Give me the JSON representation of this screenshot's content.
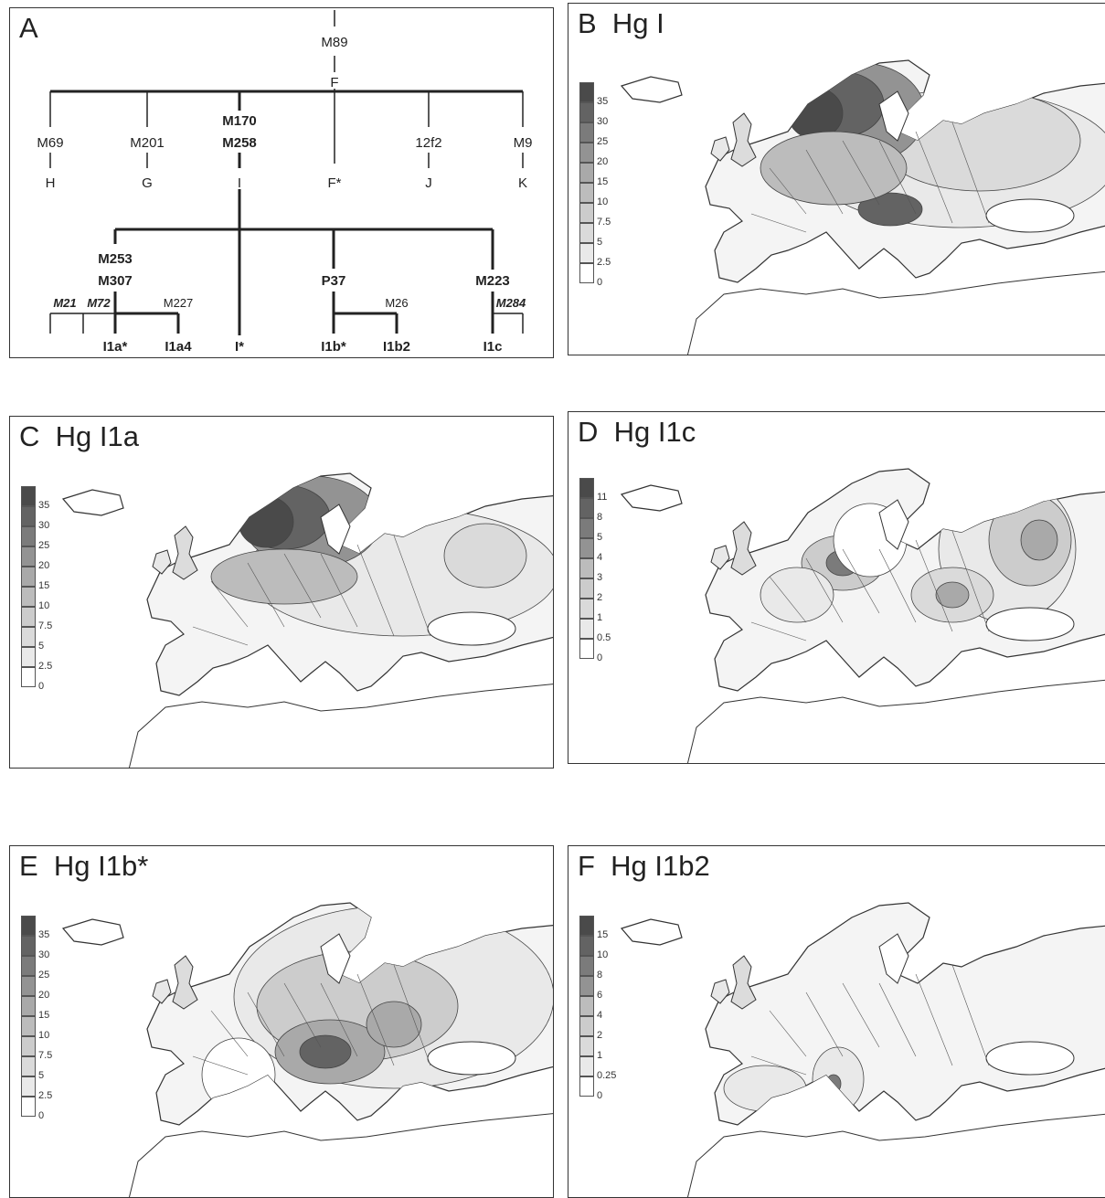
{
  "panels": {
    "A": {
      "label": "A"
    },
    "B": {
      "label": "B",
      "title": "Hg I"
    },
    "C": {
      "label": "C",
      "title": "Hg I1a"
    },
    "D": {
      "label": "D",
      "title": "Hg I1c"
    },
    "E": {
      "label": "E",
      "title": "Hg I1b*"
    },
    "F": {
      "label": "F",
      "title": "Hg I1b2"
    }
  },
  "tree": {
    "root_marker": "M89",
    "root_hg": "F",
    "branches": [
      {
        "marker": "M69",
        "hg": "H"
      },
      {
        "marker": "M201",
        "hg": "G"
      },
      {
        "marker1": "M170",
        "marker2": "M258",
        "hg": "I"
      },
      {
        "hg": "F*"
      },
      {
        "marker": "12f2",
        "hg": "J"
      },
      {
        "marker": "M9",
        "hg": "K"
      }
    ],
    "i_sub": {
      "i1a_marker1": "M253",
      "i1a_marker2": "M307",
      "i1a_sub_markers": [
        "M21",
        "M72",
        "M227"
      ],
      "i1b_marker": "P37",
      "i1b_sub_marker": "M26",
      "i1c_marker": "M223",
      "i1c_sub_marker": "M284",
      "tips": [
        "I1a*",
        "I1a4",
        "I*",
        "I1b*",
        "I1b2",
        "I1c"
      ]
    }
  },
  "legends": {
    "B": [
      "35",
      "30",
      "25",
      "20",
      "15",
      "10",
      "7.5",
      "5",
      "2.5",
      "0"
    ],
    "C": [
      "35",
      "30",
      "25",
      "20",
      "15",
      "10",
      "7.5",
      "5",
      "2.5",
      "0"
    ],
    "D": [
      "11",
      "8",
      "5",
      "4",
      "3",
      "2",
      "1",
      "0.5",
      "0"
    ],
    "E": [
      "35",
      "30",
      "25",
      "20",
      "15",
      "10",
      "7.5",
      "5",
      "2.5",
      "0"
    ],
    "F": [
      "15",
      "10",
      "8",
      "6",
      "4",
      "2",
      "1",
      "0.25",
      "0"
    ]
  },
  "colors": {
    "scale": [
      "#4a4a4a",
      "#636363",
      "#7b7b7b",
      "#939393",
      "#a9a9a9",
      "#bcbcbc",
      "#cccccc",
      "#dadada",
      "#e9e9e9",
      "#ffffff"
    ]
  }
}
